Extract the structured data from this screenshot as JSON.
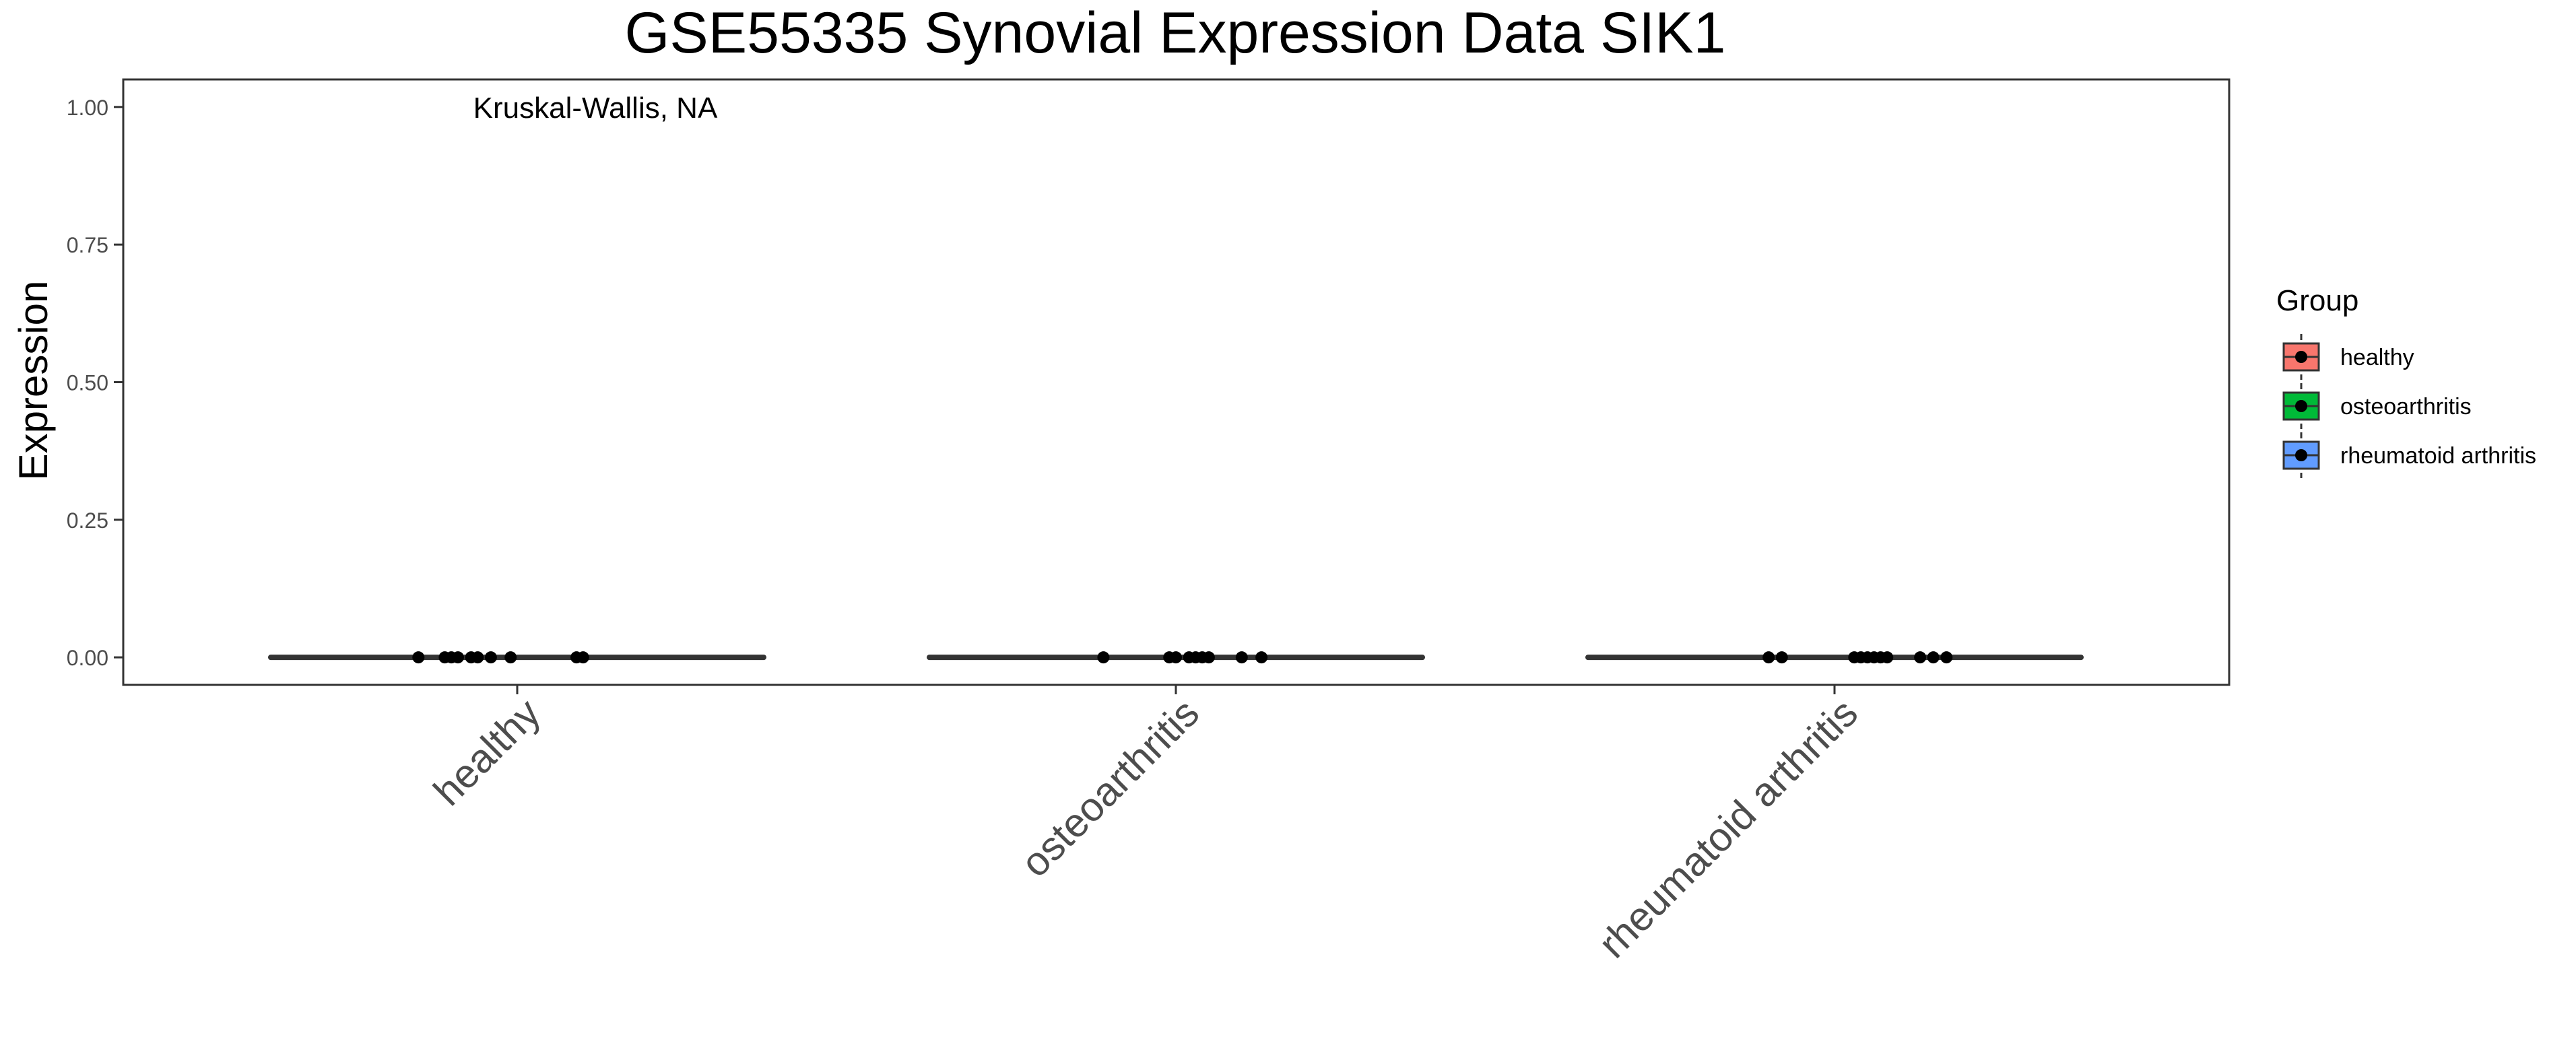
{
  "chart_data": {
    "type": "boxplot",
    "title": "GSE55335 Synovial Expression Data SIK1",
    "xlabel": "",
    "ylabel": "Expression",
    "categories": [
      "healthy",
      "osteoarthritis",
      "rheumatoid arthritis"
    ],
    "ylim": [
      -0.05,
      1.05
    ],
    "yticks": [
      0.0,
      0.25,
      0.5,
      0.75,
      1.0
    ],
    "ytick_labels": [
      "0.00",
      "0.25",
      "0.50",
      "0.75",
      "1.00"
    ],
    "annotation": "Kruskal-Wallis, NA",
    "grid": false,
    "legend": {
      "title": "Group",
      "placement": "right",
      "entries": [
        "healthy",
        "osteoarthritis",
        "rheumatoid arthritis"
      ]
    },
    "series": [
      {
        "name": "healthy",
        "color": "#F8766D",
        "box": {
          "min": 0,
          "q1": 0,
          "median": 0,
          "q3": 0,
          "max": 0
        },
        "points": [
          {
            "y": 0,
            "jitter": -0.15
          },
          {
            "y": 0,
            "jitter": -0.11
          },
          {
            "y": 0,
            "jitter": -0.1
          },
          {
            "y": 0,
            "jitter": -0.09
          },
          {
            "y": 0,
            "jitter": -0.07
          },
          {
            "y": 0,
            "jitter": -0.06
          },
          {
            "y": 0,
            "jitter": -0.04
          },
          {
            "y": 0,
            "jitter": -0.01
          },
          {
            "y": 0,
            "jitter": 0.09
          },
          {
            "y": 0,
            "jitter": 0.1
          }
        ]
      },
      {
        "name": "osteoarthritis",
        "color": "#00BA38",
        "box": {
          "min": 0,
          "q1": 0,
          "median": 0,
          "q3": 0,
          "max": 0
        },
        "points": [
          {
            "y": 0,
            "jitter": -0.11
          },
          {
            "y": 0,
            "jitter": -0.01
          },
          {
            "y": 0,
            "jitter": 0.0
          },
          {
            "y": 0,
            "jitter": 0.02
          },
          {
            "y": 0,
            "jitter": 0.03
          },
          {
            "y": 0,
            "jitter": 0.04
          },
          {
            "y": 0,
            "jitter": 0.05
          },
          {
            "y": 0,
            "jitter": 0.1
          },
          {
            "y": 0,
            "jitter": 0.13
          }
        ]
      },
      {
        "name": "rheumatoid arthritis",
        "color": "#619CFF",
        "box": {
          "min": 0,
          "q1": 0,
          "median": 0,
          "q3": 0,
          "max": 0
        },
        "points": [
          {
            "y": 0,
            "jitter": -0.1
          },
          {
            "y": 0,
            "jitter": -0.08
          },
          {
            "y": 0,
            "jitter": 0.03
          },
          {
            "y": 0,
            "jitter": 0.04
          },
          {
            "y": 0,
            "jitter": 0.05
          },
          {
            "y": 0,
            "jitter": 0.06
          },
          {
            "y": 0,
            "jitter": 0.07
          },
          {
            "y": 0,
            "jitter": 0.08
          },
          {
            "y": 0,
            "jitter": 0.13
          },
          {
            "y": 0,
            "jitter": 0.15
          },
          {
            "y": 0,
            "jitter": 0.17
          }
        ]
      }
    ]
  }
}
